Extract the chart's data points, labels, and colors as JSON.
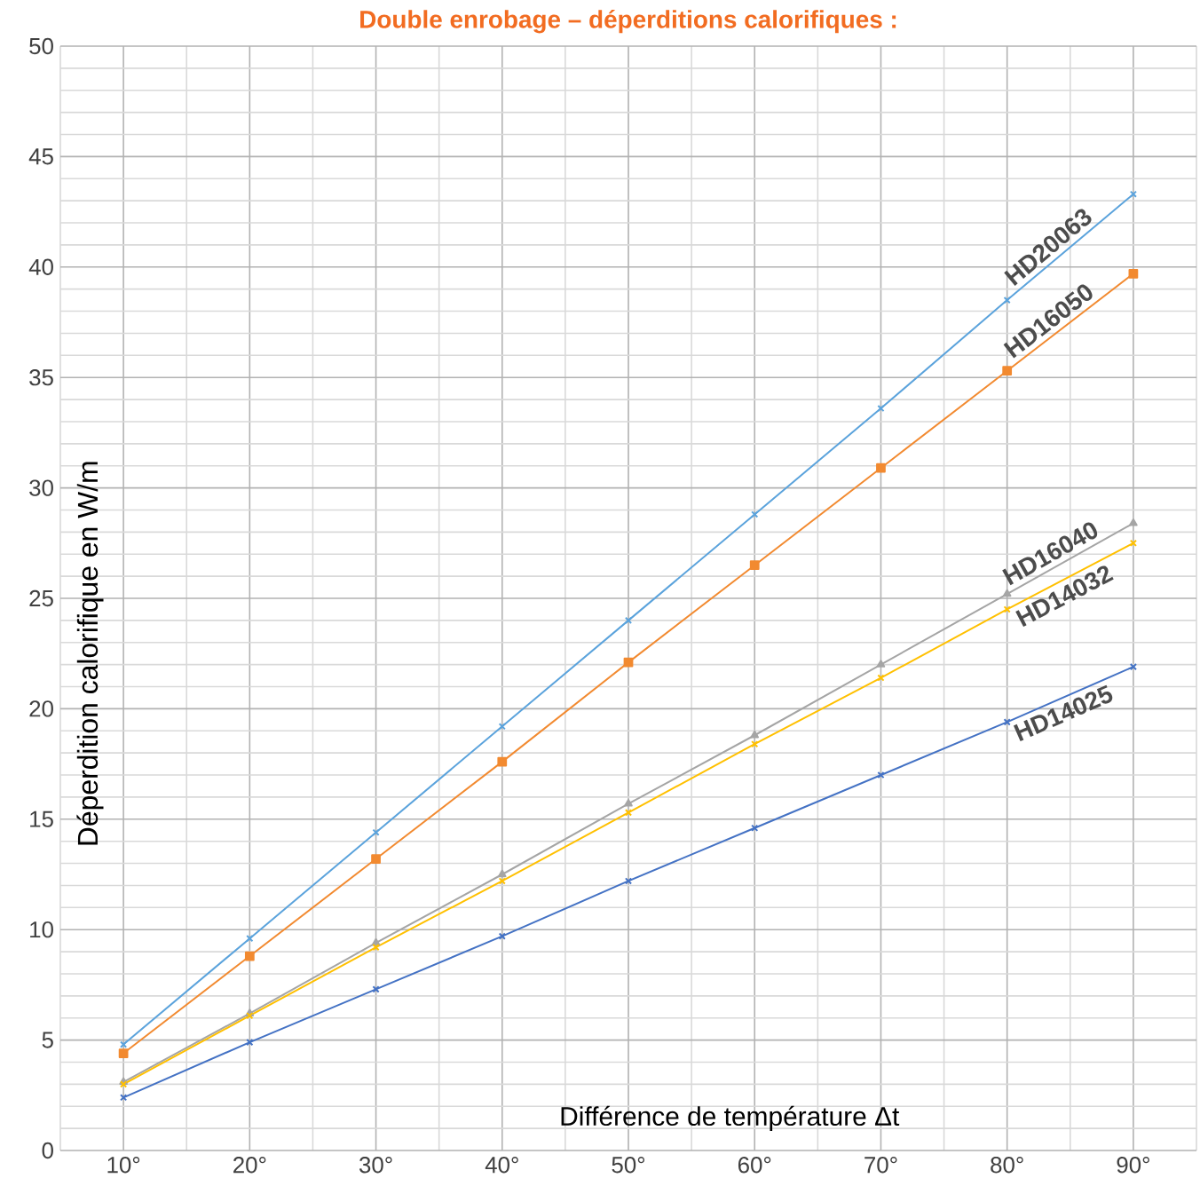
{
  "chart_data": {
    "type": "line",
    "title": "Double enrobage – déperditions calorifiques :",
    "xlabel": "Différence de température Δt",
    "ylabel": "Déperdition calorifique en W/m",
    "categories": [
      "10°",
      "20°",
      "30°",
      "40°",
      "50°",
      "60°",
      "70°",
      "80°",
      "90°"
    ],
    "ylim": [
      0,
      50
    ],
    "yticks": [
      0,
      5,
      10,
      15,
      20,
      25,
      30,
      35,
      40,
      45,
      50
    ],
    "grid": true,
    "series": [
      {
        "name": "HD20063",
        "color": "#5ba3dc",
        "marker": "cross",
        "values": [
          4.8,
          9.6,
          14.4,
          19.2,
          24.0,
          28.8,
          33.6,
          38.5,
          43.3
        ]
      },
      {
        "name": "HD16050",
        "color": "#f28a30",
        "marker": "square",
        "values": [
          4.4,
          8.8,
          13.2,
          17.6,
          22.1,
          26.5,
          30.9,
          35.3,
          39.7
        ]
      },
      {
        "name": "HD16040",
        "color": "#a5a5a5",
        "marker": "triangle",
        "values": [
          3.1,
          6.2,
          9.4,
          12.5,
          15.7,
          18.8,
          22.0,
          25.2,
          28.4
        ]
      },
      {
        "name": "HD14032",
        "color": "#ffc000",
        "marker": "cross",
        "values": [
          3.0,
          6.1,
          9.2,
          12.2,
          15.3,
          18.4,
          21.4,
          24.5,
          27.5
        ]
      },
      {
        "name": "HD14025",
        "color": "#4472c4",
        "marker": "cross",
        "values": [
          2.4,
          4.9,
          7.3,
          9.7,
          12.2,
          14.6,
          17.0,
          19.4,
          21.9
        ]
      }
    ]
  }
}
